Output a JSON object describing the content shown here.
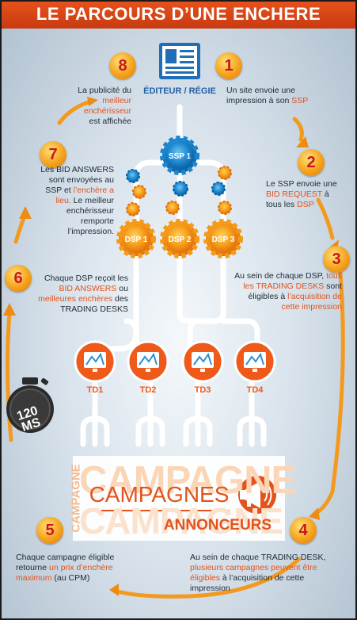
{
  "title": "LE PARCOURS D’UNE ENCHERE",
  "editor": {
    "label": "ÉDITEUR / RÉGIE",
    "icon": "document-icon"
  },
  "gears": {
    "ssp": "SSP 1",
    "dsp": [
      "DSP 1",
      "DSP 2",
      "DSP 3"
    ]
  },
  "trading_desks": [
    "TD1",
    "TD2",
    "TD3",
    "TD4"
  ],
  "timer": {
    "value": "120",
    "unit": "MS"
  },
  "campaign": {
    "bg_word_1": "CAMPAGNE",
    "bg_word_2": "CAMPAGNE",
    "vertical_word": "CAMPAGNE",
    "main": "CAMPAGNES",
    "sub": "ANNONCEURS",
    "icon": "megaphone-icon"
  },
  "steps": [
    {
      "number": "1",
      "parts": [
        {
          "t": "Un site envoie une impression à son ",
          "h": false
        },
        {
          "t": "SSP",
          "h": true
        }
      ]
    },
    {
      "number": "2",
      "parts": [
        {
          "t": "Le SSP envoie une ",
          "h": false
        },
        {
          "t": "BID REQUEST",
          "h": true
        },
        {
          "t": " à tous les ",
          "h": false
        },
        {
          "t": "DSP",
          "h": true
        }
      ]
    },
    {
      "number": "3",
      "parts": [
        {
          "t": "Au sein de chaque DSP, ",
          "h": false
        },
        {
          "t": "tous les TRADING DESKS",
          "h": true
        },
        {
          "t": " sont éligibles à ",
          "h": false
        },
        {
          "t": "l’acquisition de cette impression",
          "h": true
        }
      ]
    },
    {
      "number": "4",
      "parts": [
        {
          "t": "Au sein de chaque TRADING DESK, ",
          "h": false
        },
        {
          "t": "plusieurs campagnes peuvent être éligibles",
          "h": true
        },
        {
          "t": " à l’acquisition de cette impression",
          "h": false
        }
      ]
    },
    {
      "number": "5",
      "parts": [
        {
          "t": "Chaque campagne éligible retourne ",
          "h": false
        },
        {
          "t": "un prix d’enchère maximum",
          "h": true
        },
        {
          "t": " (au CPM)",
          "h": false
        }
      ]
    },
    {
      "number": "6",
      "parts": [
        {
          "t": "Chaque DSP reçoit les ",
          "h": false
        },
        {
          "t": "BID ANSWERS",
          "h": true
        },
        {
          "t": " ou ",
          "h": false
        },
        {
          "t": "meilleures enchères",
          "h": true
        },
        {
          "t": " des TRADING DESKS",
          "h": false
        }
      ]
    },
    {
      "number": "7",
      "parts": [
        {
          "t": "Les BID ANSWERS sont envoyées au SSP et ",
          "h": false
        },
        {
          "t": "l’enchère a lieu.",
          "h": true
        },
        {
          "t": " Le meilleur enchérisseur remporte l’impression.",
          "h": false
        }
      ]
    },
    {
      "number": "8",
      "parts": [
        {
          "t": "La publicité du ",
          "h": false
        },
        {
          "t": "meilleur enchérisseur",
          "h": true
        },
        {
          "t": " est affichée",
          "h": false
        }
      ]
    }
  ],
  "colors": {
    "accent": "#e2531d",
    "blue": "#1f5fa6",
    "gear_orange": "#f6a623",
    "line_white": "#ffffff"
  }
}
